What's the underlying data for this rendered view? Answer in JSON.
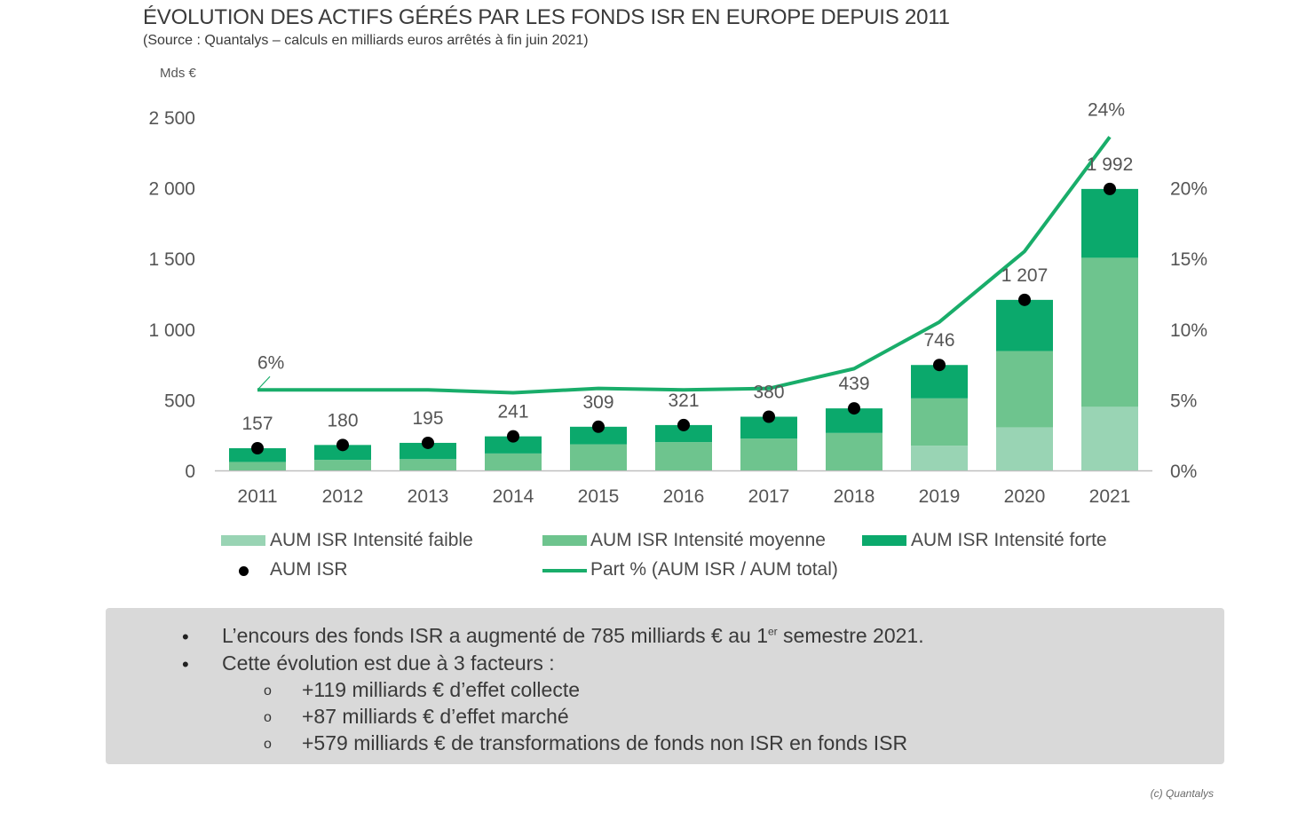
{
  "header": {
    "title": "ÉVOLUTION DES ACTIFS GÉRÉS PAR LES FONDS ISR EN EUROPE DEPUIS 2011",
    "subtitle": "(Source : Quantalys – calculs en milliards euros arrêtés à fin juin 2021)"
  },
  "chart_data": {
    "type": "bar",
    "stacked": true,
    "y_unit_label": "Mds €",
    "categories": [
      "2011",
      "2012",
      "2013",
      "2014",
      "2015",
      "2016",
      "2017",
      "2018",
      "2019",
      "2020",
      "2021"
    ],
    "ylim": [
      0,
      2500
    ],
    "yticks": [
      "0",
      "500",
      "1 000",
      "1 500",
      "2 000",
      "2 500"
    ],
    "y2lim": [
      0,
      25
    ],
    "y2ticks": [
      "0%",
      "5%",
      "10%",
      "15%",
      "20%"
    ],
    "series": [
      {
        "name": "AUM ISR Intensité faible",
        "color": "#99d4b4",
        "values": [
          0,
          0,
          0,
          0,
          0,
          0,
          0,
          0,
          175,
          305,
          450
        ]
      },
      {
        "name": "AUM ISR Intensité moyenne",
        "color": "#6ec48e",
        "values": [
          60,
          75,
          80,
          120,
          185,
          200,
          225,
          265,
          335,
          540,
          1055
        ]
      },
      {
        "name": "AUM ISR Intensité forte",
        "color": "#0ba96c",
        "values": [
          97,
          105,
          115,
          121,
          124,
          121,
          155,
          174,
          236,
          362,
          487
        ]
      }
    ],
    "totals": {
      "name": "AUM ISR",
      "values": [
        157,
        180,
        195,
        241,
        309,
        321,
        380,
        439,
        746,
        1207,
        1992
      ],
      "labels": [
        "157",
        "180",
        "195",
        "241",
        "309",
        "321",
        "380",
        "439",
        "746",
        "1 207",
        "1 992"
      ]
    },
    "share": {
      "name": "Part % (AUM ISR / AUM total)",
      "color": "#19ad6a",
      "values": [
        5.7,
        5.7,
        5.7,
        5.5,
        5.8,
        5.7,
        5.8,
        7.2,
        10.5,
        15.5,
        23.6
      ],
      "annotations": [
        {
          "index": 0,
          "label": "6%"
        },
        {
          "index": 10,
          "label": "24%"
        }
      ]
    }
  },
  "legend": {
    "faible": "AUM ISR Intensité faible",
    "moyenne": "AUM ISR Intensité moyenne",
    "forte": "AUM ISR Intensité forte",
    "aum": "AUM ISR",
    "part": "Part % (AUM ISR / AUM total)"
  },
  "notes": {
    "b1_pre": "L’encours des fonds ISR a augmenté de 785 milliards € au 1",
    "b1_sup": "er",
    "b1_post": " semestre 2021.",
    "b2": "Cette évolution est due à 3 facteurs :",
    "s1": "+119 milliards € d’effet collecte",
    "s2": "+87 milliards € d’effet marché",
    "s3": "+579 milliards € de transformations de fonds non ISR en fonds ISR",
    "bullet": "•",
    "sub_bullet": "o"
  },
  "credit": "(c) Quantalys"
}
